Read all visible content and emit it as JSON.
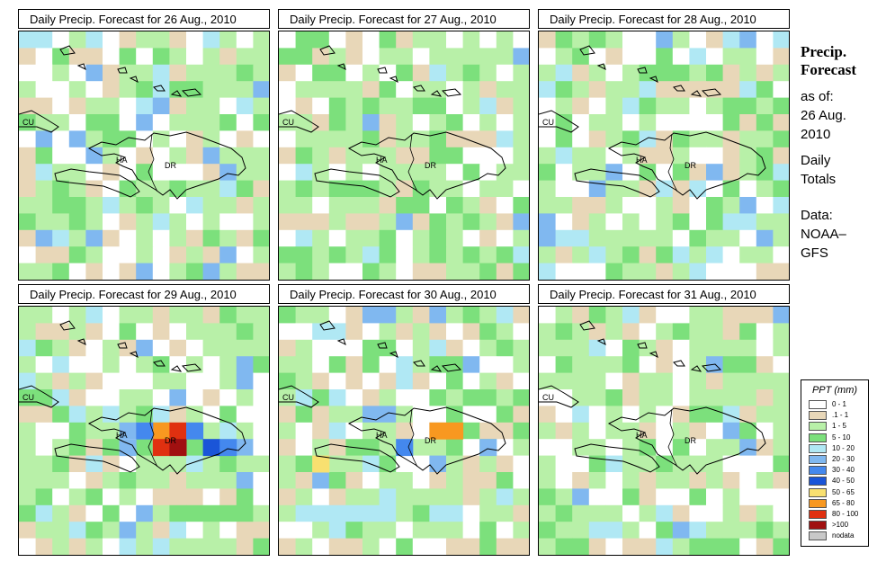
{
  "panels": [
    {
      "title": "Daily Precip. Forecast for  26 Aug., 2010",
      "date": "26 Aug., 2010"
    },
    {
      "title": "Daily Precip. Forecast for  27 Aug., 2010",
      "date": "27 Aug., 2010"
    },
    {
      "title": "Daily Precip. Forecast for  28 Aug., 2010",
      "date": "28 Aug., 2010"
    },
    {
      "title": "Daily Precip. Forecast for  29 Aug., 2010",
      "date": "29 Aug., 2010"
    },
    {
      "title": "Daily Precip. Forecast for  30 Aug., 2010",
      "date": "30 Aug., 2010"
    },
    {
      "title": "Daily Precip. Forecast for  31 Aug., 2010",
      "date": "31 Aug., 2010"
    }
  ],
  "map_labels": {
    "cuba": "CU",
    "haiti": "HA",
    "dominican_republic": "DR"
  },
  "side": {
    "title_line1": "Precip.",
    "title_line2": "Forecast",
    "asof_line1": "as of:",
    "asof_line2": "26 Aug.",
    "asof_line3": "2010",
    "totals_line1": "Daily",
    "totals_line2": "Totals",
    "data_line1": "Data:",
    "data_line2": "NOAA–",
    "data_line3": "GFS"
  },
  "legend": {
    "title": "PPT (mm)",
    "items": [
      {
        "label": "0 - 1",
        "color": "#ffffff"
      },
      {
        "label": ".1 - 1",
        "color": "#e8d7b8"
      },
      {
        "label": "1 - 5",
        "color": "#b8f0a8"
      },
      {
        "label": "5 - 10",
        "color": "#7ce07c"
      },
      {
        "label": "10 - 20",
        "color": "#b0e8f4"
      },
      {
        "label": "20 - 30",
        "color": "#80b8f0"
      },
      {
        "label": "30 - 40",
        "color": "#4488ee"
      },
      {
        "label": "40 - 50",
        "color": "#1a55d8"
      },
      {
        "label": "50 - 65",
        "color": "#f8e070"
      },
      {
        "label": "65 - 80",
        "color": "#f89820"
      },
      {
        "label": "80 - 100",
        "color": "#e03010"
      },
      {
        "label": ">100",
        "color": "#a01010"
      },
      {
        "label": "nodata",
        "color": "#c8c8c8"
      }
    ]
  }
}
